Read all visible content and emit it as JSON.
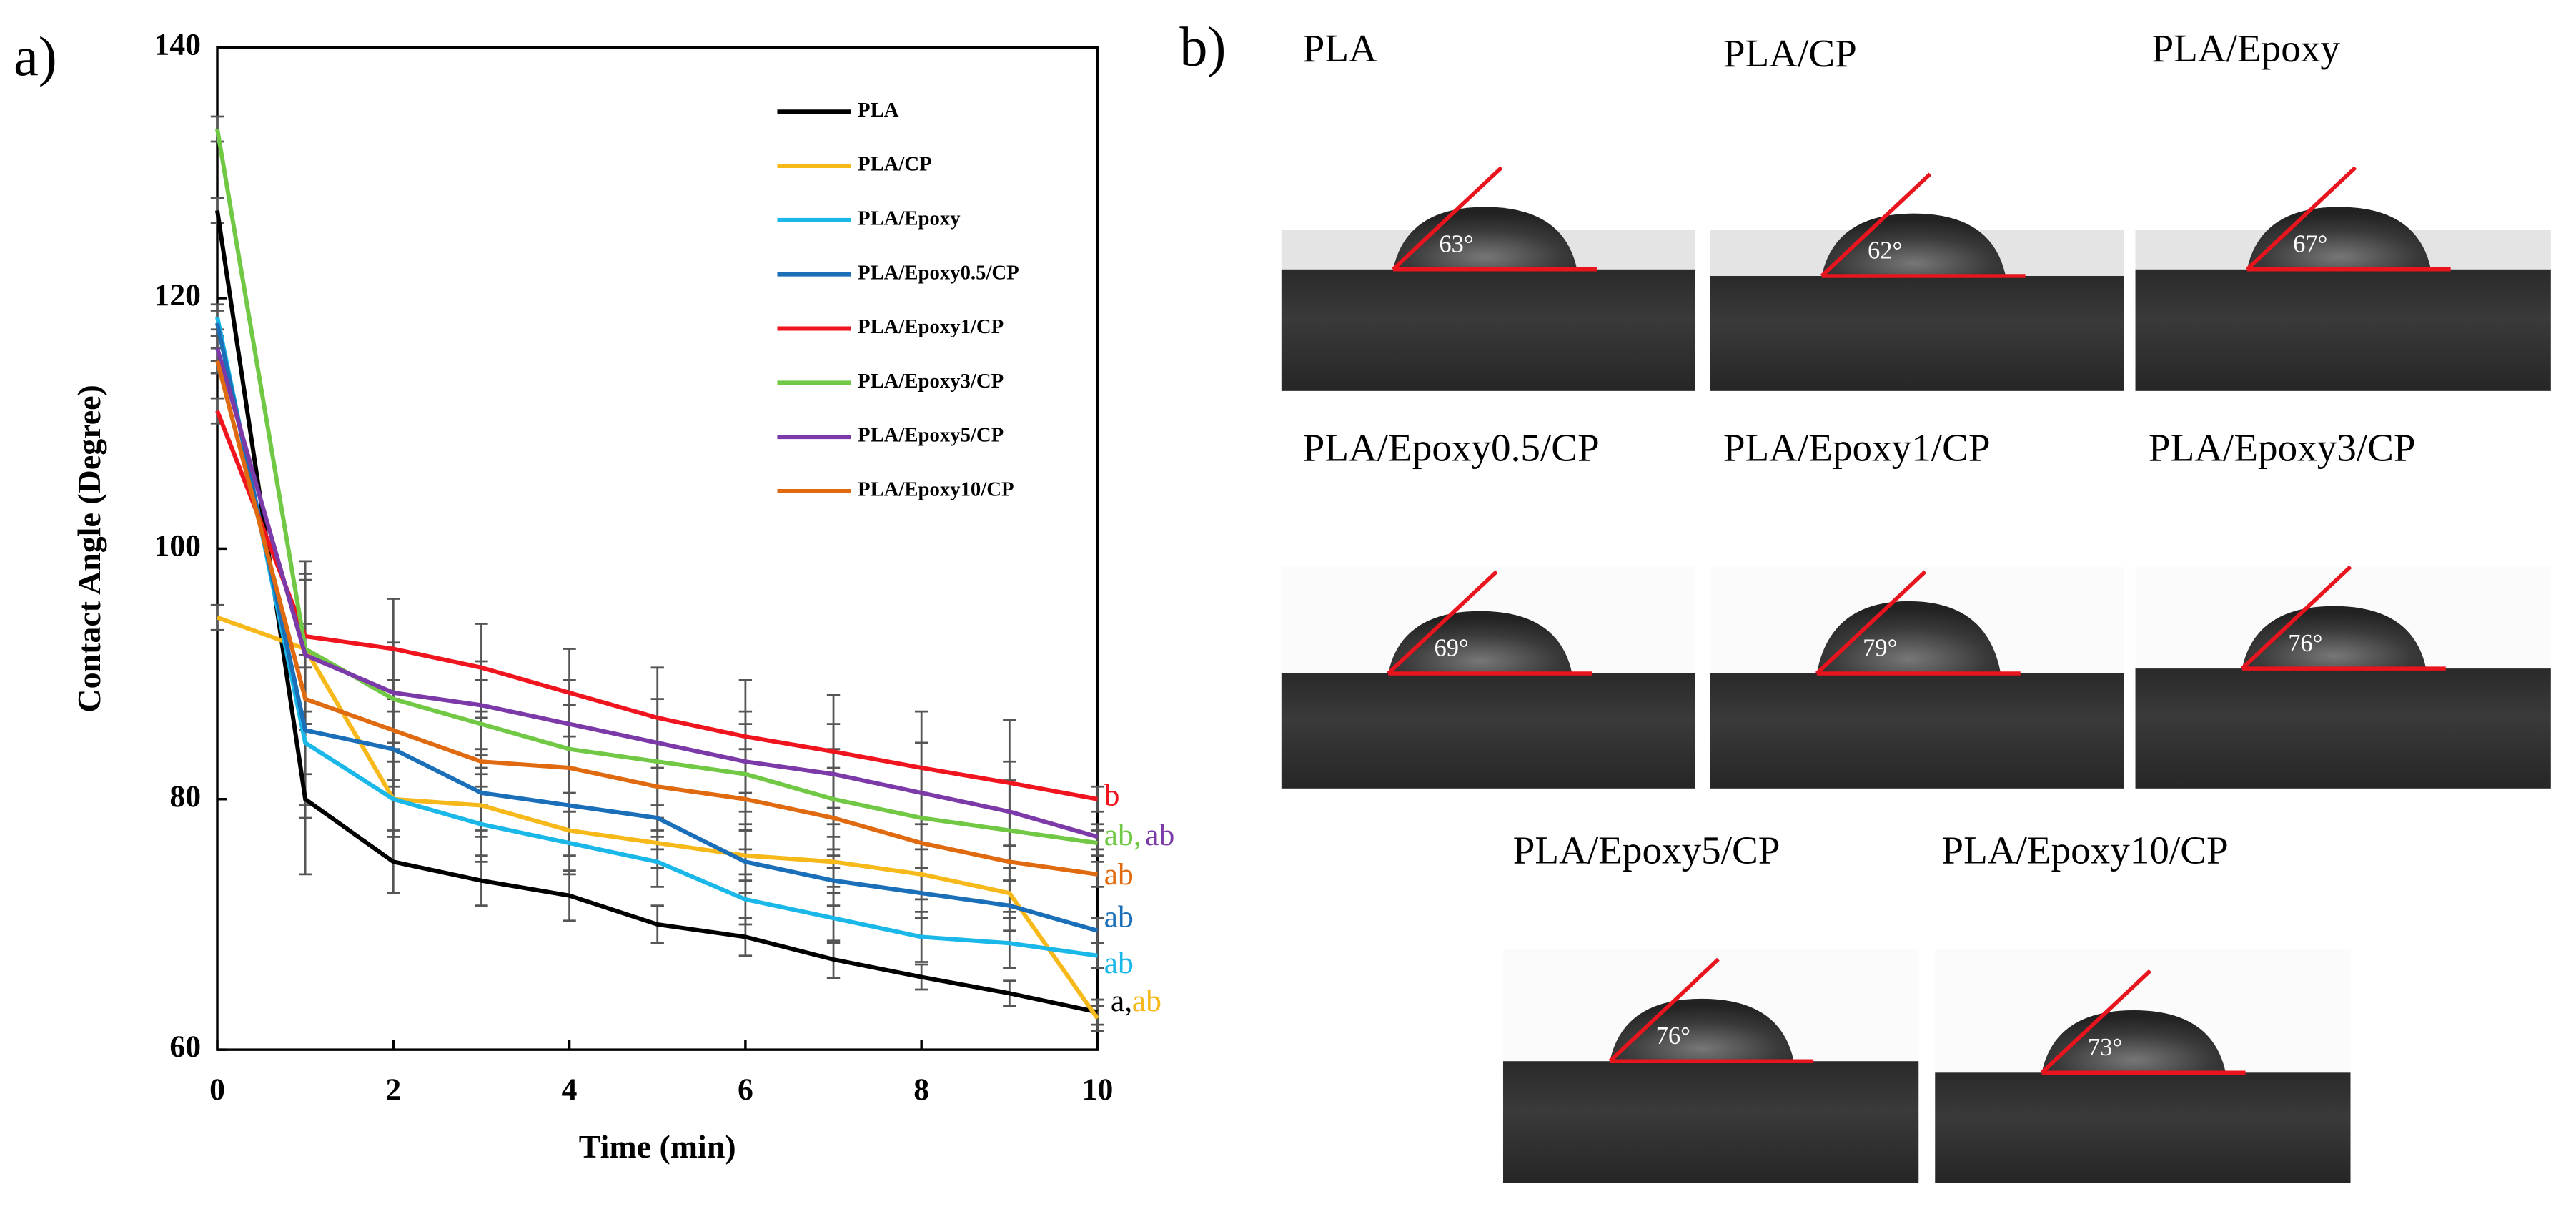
{
  "chart_data": {
    "type": "line",
    "panel_label": "a)",
    "xlabel": "Time (min)",
    "ylabel": "Contact Angle (Degree)",
    "x": [
      0,
      1,
      2,
      3,
      4,
      5,
      6,
      7,
      8,
      9,
      10
    ],
    "xlim": [
      0,
      10
    ],
    "xticks": [
      0,
      2,
      4,
      6,
      8,
      10
    ],
    "ylim": [
      60,
      140
    ],
    "yticks": [
      60,
      80,
      100,
      120,
      140
    ],
    "series": [
      {
        "name": "PLA",
        "color": "#000000",
        "values": [
          127,
          80,
          75,
          73.5,
          72.3,
          70,
          69,
          67.2,
          65.8,
          64.5,
          63
        ],
        "errors": [
          1,
          6,
          2.5,
          2,
          2,
          1.5,
          1.5,
          1.5,
          1,
          1,
          1
        ]
      },
      {
        "name": "PLA/CP",
        "color": "#f7b81a",
        "values": [
          94.5,
          92,
          80,
          79.5,
          77.5,
          76.5,
          75.5,
          75,
          74,
          72.5,
          62.5
        ],
        "errors": [
          1,
          6,
          3,
          2.5,
          2,
          2,
          2,
          2,
          2,
          2,
          1
        ]
      },
      {
        "name": "PLA/Epoxy",
        "color": "#1ab8e8",
        "values": [
          118.5,
          84.5,
          80,
          78,
          76.5,
          75,
          72,
          70.5,
          69,
          68.5,
          67.5
        ],
        "errors": [
          1,
          6,
          3,
          3,
          2.5,
          2,
          2,
          2,
          2,
          2,
          1
        ]
      },
      {
        "name": "PLA/Epoxy0.5/CP",
        "color": "#1a6fb8",
        "values": [
          118,
          85.5,
          84,
          80.5,
          79.5,
          78.5,
          75,
          73.5,
          72.5,
          71.5,
          69.5
        ],
        "errors": [
          1,
          6,
          3,
          3,
          3,
          2.5,
          2.5,
          2,
          2,
          2,
          1
        ]
      },
      {
        "name": "PLA/Epoxy1/CP",
        "color": "#f0141e",
        "values": [
          111,
          93,
          92,
          90.5,
          88.5,
          86.5,
          85,
          83.8,
          82.5,
          81.3,
          80
        ],
        "errors": [
          1,
          6,
          4,
          3.5,
          3.5,
          4,
          4.5,
          4.5,
          4.5,
          5,
          1
        ]
      },
      {
        "name": "PLA/Epoxy3/CP",
        "color": "#70c844",
        "values": [
          133.5,
          92,
          88,
          86,
          84,
          83,
          82,
          80,
          78.5,
          77.5,
          76.5
        ],
        "errors": [
          1,
          6,
          4,
          3.5,
          3.5,
          3.5,
          4,
          4,
          4,
          4,
          1
        ]
      },
      {
        "name": "PLA/Epoxy5/CP",
        "color": "#7b3aa8",
        "values": [
          116,
          91.5,
          88.5,
          87.5,
          86,
          84.5,
          83,
          82,
          80.5,
          79,
          77
        ],
        "errors": [
          1,
          6,
          4,
          3.5,
          3.5,
          3.5,
          4,
          4,
          4,
          4,
          1
        ]
      },
      {
        "name": "PLA/Epoxy10/CP",
        "color": "#e06a10",
        "values": [
          115,
          88,
          85.5,
          83,
          82.5,
          81,
          80,
          78.5,
          76.5,
          75,
          74
        ],
        "errors": [
          1,
          6,
          4,
          3.5,
          3.5,
          3.5,
          4,
          4,
          4,
          4,
          1
        ]
      }
    ],
    "end_labels": [
      {
        "text": "b",
        "color": "#f0141e"
      },
      {
        "text": "ab,",
        "color": "#70c844"
      },
      {
        "text": "ab",
        "color": "#7b3aa8"
      },
      {
        "text": "ab",
        "color": "#e06a10"
      },
      {
        "text": "ab",
        "color": "#1a6fb8"
      },
      {
        "text": "ab",
        "color": "#1ab8e8"
      },
      {
        "text": "a,",
        "color": "#000000"
      },
      {
        "text": "ab",
        "color": "#f7b81a"
      }
    ]
  },
  "panel_b": {
    "label": "b)",
    "images": [
      {
        "title": "PLA",
        "angle": "63°"
      },
      {
        "title": "PLA/CP",
        "angle": "62°"
      },
      {
        "title": "PLA/Epoxy",
        "angle": "67°"
      },
      {
        "title": "PLA/Epoxy0.5/CP",
        "angle": "69°"
      },
      {
        "title": "PLA/Epoxy1/CP",
        "angle": "79°"
      },
      {
        "title": "PLA/Epoxy3/CP",
        "angle": "76°"
      },
      {
        "title": "PLA/Epoxy5/CP",
        "angle": "76°"
      },
      {
        "title": "PLA/Epoxy10/CP",
        "angle": "73°"
      }
    ]
  }
}
